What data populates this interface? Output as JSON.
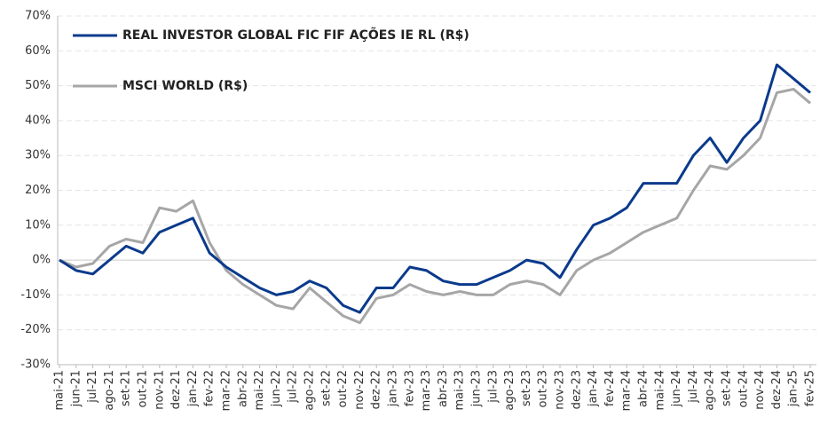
{
  "chart_data": {
    "type": "line",
    "categories": [
      "mai-21",
      "jun-21",
      "jul-21",
      "ago-21",
      "set-21",
      "out-21",
      "nov-21",
      "dez-21",
      "jan-22",
      "fev-22",
      "mar-22",
      "abr-22",
      "mai-22",
      "jun-22",
      "jul-22",
      "ago-22",
      "set-22",
      "out-22",
      "nov-22",
      "dez-22",
      "jan-23",
      "fev-23",
      "mar-23",
      "abr-23",
      "mai-23",
      "jun-23",
      "jul-23",
      "ago-23",
      "set-23",
      "out-23",
      "nov-23",
      "dez-23",
      "jan-24",
      "fev-24",
      "mar-24",
      "abr-24",
      "mai-24",
      "jun-24",
      "jul-24",
      "ago-24",
      "set-24",
      "out-24",
      "nov-24",
      "dez-24",
      "jan-25",
      "fev-25"
    ],
    "series": [
      {
        "name": "REAL INVESTOR GLOBAL FIC FIF AÇÕES IE RL (R$)",
        "color": "#0b3a8c",
        "values": [
          0,
          -3,
          -4,
          0,
          4,
          2,
          8,
          10,
          12,
          2,
          -2,
          -5,
          -8,
          -10,
          -9,
          -6,
          -8,
          -13,
          -15,
          -8,
          -8,
          -2,
          -3,
          -6,
          -7,
          -7,
          -5,
          -3,
          0,
          -1,
          -5,
          3,
          10,
          12,
          15,
          22,
          22,
          22,
          30,
          35,
          28,
          35,
          40,
          56,
          52,
          48
        ]
      },
      {
        "name": "MSCI WORLD (R$)",
        "color": "#a6a6a6",
        "values": [
          0,
          -2,
          -1,
          4,
          6,
          5,
          15,
          14,
          17,
          5,
          -3,
          -7,
          -10,
          -13,
          -14,
          -8,
          -12,
          -16,
          -18,
          -11,
          -10,
          -7,
          -9,
          -10,
          -9,
          -10,
          -10,
          -7,
          -6,
          -7,
          -10,
          -3,
          0,
          2,
          5,
          8,
          10,
          12,
          20,
          27,
          26,
          30,
          35,
          48,
          49,
          45
        ]
      }
    ],
    "ylim": [
      -30,
      70
    ],
    "yticks": [
      {
        "value": -30,
        "label": "-30%"
      },
      {
        "value": -20,
        "label": "-20%"
      },
      {
        "value": -10,
        "label": "-10%"
      },
      {
        "value": 0,
        "label": "0%"
      },
      {
        "value": 10,
        "label": "10%"
      },
      {
        "value": 20,
        "label": "20%"
      },
      {
        "value": 30,
        "label": "30%"
      },
      {
        "value": 40,
        "label": "40%"
      },
      {
        "value": 50,
        "label": "50%"
      },
      {
        "value": 60,
        "label": "60%"
      },
      {
        "value": 70,
        "label": "70%"
      }
    ],
    "grid": true
  }
}
